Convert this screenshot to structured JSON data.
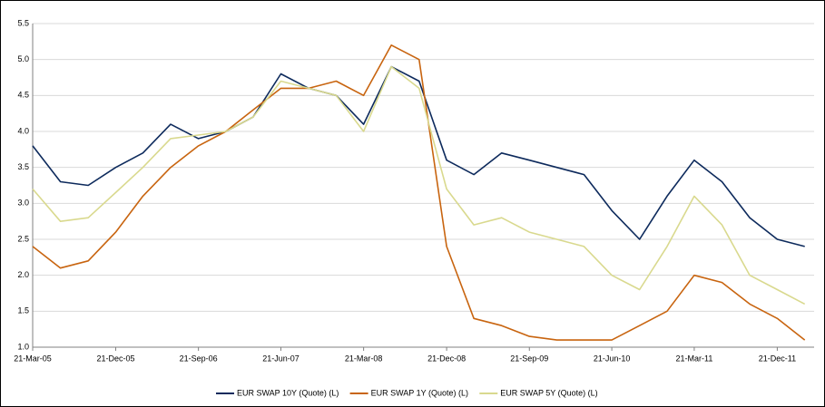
{
  "chart_data": {
    "type": "line",
    "x": [
      "2005-03-21",
      "2005-06-21",
      "2005-09-21",
      "2005-12-21",
      "2006-03-21",
      "2006-06-21",
      "2006-09-21",
      "2006-12-21",
      "2007-03-21",
      "2007-06-21",
      "2007-09-21",
      "2007-12-21",
      "2008-03-21",
      "2008-06-21",
      "2008-09-21",
      "2008-12-21",
      "2009-03-21",
      "2009-06-21",
      "2009-09-21",
      "2009-12-21",
      "2010-03-21",
      "2010-06-21",
      "2010-09-21",
      "2010-12-21",
      "2011-03-21",
      "2011-06-21",
      "2011-09-21",
      "2011-12-21",
      "2012-03-21"
    ],
    "series": [
      {
        "name": "EUR SWAP 10Y (Quote) (L)",
        "color": "#0d2a5c",
        "values": [
          3.8,
          3.3,
          3.25,
          3.5,
          3.7,
          4.1,
          3.9,
          4.0,
          4.2,
          4.8,
          4.6,
          4.5,
          4.1,
          4.9,
          4.7,
          3.6,
          3.4,
          3.7,
          3.6,
          3.5,
          3.4,
          2.9,
          2.5,
          3.1,
          3.6,
          3.3,
          2.8,
          2.5,
          2.4
        ]
      },
      {
        "name": "EUR SWAP 1Y (Quote) (L)",
        "color": "#c8640f",
        "values": [
          2.4,
          2.1,
          2.2,
          2.6,
          3.1,
          3.5,
          3.8,
          4.0,
          4.3,
          4.6,
          4.6,
          4.7,
          4.5,
          5.2,
          5.0,
          2.4,
          1.4,
          1.3,
          1.15,
          1.1,
          1.1,
          1.1,
          1.3,
          1.5,
          2.0,
          1.9,
          1.6,
          1.4,
          1.1
        ]
      },
      {
        "name": "EUR SWAP 5Y (Quote) (L)",
        "color": "#d9d98e",
        "values": [
          3.2,
          2.75,
          2.8,
          3.15,
          3.5,
          3.9,
          3.95,
          4.0,
          4.2,
          4.7,
          4.6,
          4.5,
          4.0,
          4.9,
          4.6,
          3.2,
          2.7,
          2.8,
          2.6,
          2.5,
          2.4,
          2.0,
          1.8,
          2.4,
          3.1,
          2.7,
          2.0,
          1.8,
          1.6
        ]
      }
    ],
    "xlim": [
      "2005-03-21",
      "2012-04-21"
    ],
    "xticks": [
      {
        "value": "2005-03-21",
        "label": "21-Mar-05"
      },
      {
        "value": "2005-12-21",
        "label": "21-Dec-05"
      },
      {
        "value": "2006-09-21",
        "label": "21-Sep-06"
      },
      {
        "value": "2007-06-21",
        "label": "21-Jun-07"
      },
      {
        "value": "2008-03-21",
        "label": "21-Mar-08"
      },
      {
        "value": "2008-12-21",
        "label": "21-Dec-08"
      },
      {
        "value": "2009-09-21",
        "label": "21-Sep-09"
      },
      {
        "value": "2010-06-21",
        "label": "21-Jun-10"
      },
      {
        "value": "2011-03-21",
        "label": "21-Mar-11"
      },
      {
        "value": "2011-12-21",
        "label": "21-Dec-11"
      }
    ],
    "ylim": [
      1,
      5.5
    ],
    "yticks": [
      {
        "value": 1,
        "label": "1.0"
      },
      1.5,
      {
        "value": 2,
        "label": "2.0"
      },
      2.5,
      {
        "value": 3,
        "label": "3.0"
      },
      3.5,
      {
        "value": 4,
        "label": "4.0"
      },
      4.5,
      {
        "value": 5,
        "label": "5.0"
      },
      5.5
    ],
    "grid": true,
    "legend": "bottom"
  }
}
